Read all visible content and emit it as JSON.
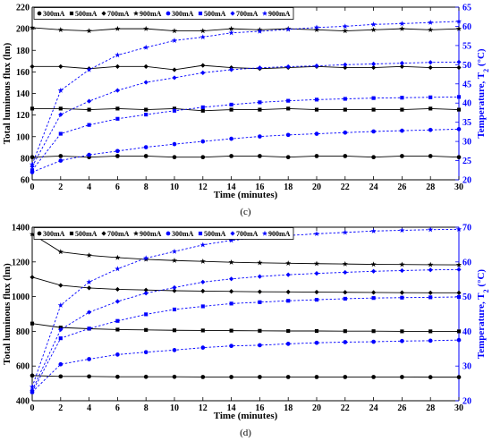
{
  "chart_data": [
    {
      "type": "line",
      "panel_label": "(c)",
      "xlabel": "Time (minutes)",
      "ylabel": "Total luminous flux (lm)",
      "ylabel_right_parts": [
        "Temperature, T",
        "2",
        " (°C)"
      ],
      "xlim": [
        0,
        30
      ],
      "ylim": [
        60,
        220
      ],
      "ylim_right": [
        20,
        65
      ],
      "x_ticks": [
        0,
        2,
        4,
        6,
        8,
        10,
        12,
        14,
        16,
        18,
        20,
        22,
        24,
        26,
        28,
        30
      ],
      "y_ticks": [
        60,
        80,
        100,
        120,
        140,
        160,
        180,
        200,
        220
      ],
      "y_right_ticks": [
        20,
        25,
        30,
        35,
        40,
        45,
        50,
        55,
        60,
        65
      ],
      "x": [
        0,
        2,
        4,
        6,
        8,
        10,
        12,
        14,
        16,
        18,
        20,
        22,
        24,
        26,
        28,
        30
      ],
      "legend_position": "top-left",
      "series": [
        {
          "name": "300mA",
          "axis": "left",
          "color": "#000000",
          "marker": "circle",
          "values": [
            81,
            82,
            81,
            82,
            82,
            81,
            81,
            82,
            82,
            81,
            82,
            82,
            81,
            82,
            82,
            81
          ]
        },
        {
          "name": "500mA",
          "axis": "left",
          "color": "#000000",
          "marker": "square",
          "values": [
            126,
            126,
            125,
            126,
            125,
            126,
            124,
            125,
            125,
            126,
            125,
            125,
            125,
            125,
            126,
            125
          ]
        },
        {
          "name": "700mA",
          "axis": "left",
          "color": "#000000",
          "marker": "diamond",
          "values": [
            165,
            165,
            163,
            165,
            165,
            162,
            166,
            164,
            163,
            164,
            165,
            164,
            164,
            165,
            164,
            164
          ]
        },
        {
          "name": "900mA",
          "axis": "left",
          "color": "#000000",
          "marker": "star",
          "values": [
            201,
            199,
            198,
            200,
            200,
            198,
            198,
            200,
            199,
            200,
            199,
            198,
            199,
            200,
            199,
            200
          ]
        },
        {
          "name": "300mA",
          "axis": "right",
          "color": "#0000ff",
          "marker": "circle",
          "values": [
            22,
            25,
            26.5,
            27.5,
            28.5,
            29.3,
            30,
            30.7,
            31.3,
            31.7,
            32,
            32.3,
            32.6,
            32.8,
            33,
            33.2
          ]
        },
        {
          "name": "500mA",
          "axis": "right",
          "color": "#0000ff",
          "marker": "square",
          "values": [
            22.5,
            32,
            34.3,
            35.9,
            37,
            38,
            38.9,
            39.6,
            40.2,
            40.6,
            40.9,
            41.1,
            41.3,
            41.4,
            41.5,
            41.6
          ]
        },
        {
          "name": "700mA",
          "axis": "right",
          "color": "#0000ff",
          "marker": "diamond",
          "values": [
            23.5,
            37,
            40.5,
            43.3,
            45.4,
            46.6,
            47.9,
            48.7,
            49.2,
            49.5,
            49.7,
            50,
            50.2,
            50.4,
            50.6,
            50.7
          ]
        },
        {
          "name": "900mA",
          "axis": "right",
          "color": "#0000ff",
          "marker": "star",
          "values": [
            24,
            43.3,
            48.7,
            52.5,
            54.5,
            56.3,
            57.2,
            58.3,
            58.7,
            59.2,
            59.7,
            60,
            60.5,
            60.7,
            61,
            61.3
          ]
        }
      ]
    },
    {
      "type": "line",
      "panel_label": "(d)",
      "xlabel": "Time (minutes)",
      "ylabel": "Total luminous flux (lm)",
      "ylabel_right_parts": [
        "Temperature, T",
        "2",
        " (°C)"
      ],
      "xlim": [
        0,
        30
      ],
      "ylim": [
        400,
        1400
      ],
      "ylim_right": [
        20,
        70
      ],
      "x_ticks": [
        0,
        2,
        4,
        6,
        8,
        10,
        12,
        14,
        16,
        18,
        20,
        22,
        24,
        26,
        28,
        30
      ],
      "y_ticks": [
        400,
        600,
        800,
        1000,
        1200,
        1400
      ],
      "y_right_ticks": [
        20,
        30,
        40,
        50,
        60,
        70
      ],
      "x": [
        0,
        2,
        4,
        6,
        8,
        10,
        12,
        14,
        16,
        18,
        20,
        22,
        24,
        26,
        28,
        30
      ],
      "legend_position": "top-left",
      "series": [
        {
          "name": "300mA",
          "axis": "left",
          "color": "#000000",
          "marker": "circle",
          "values": [
            545,
            540,
            540,
            538,
            538,
            538,
            537,
            537,
            537,
            537,
            537,
            537,
            537,
            537,
            536,
            536
          ]
        },
        {
          "name": "500mA",
          "axis": "left",
          "color": "#000000",
          "marker": "square",
          "values": [
            845,
            822,
            815,
            810,
            808,
            806,
            805,
            804,
            803,
            802,
            802,
            801,
            801,
            800,
            800,
            800
          ]
        },
        {
          "name": "700mA",
          "axis": "left",
          "color": "#000000",
          "marker": "diamond",
          "values": [
            1112,
            1065,
            1050,
            1042,
            1038,
            1034,
            1032,
            1030,
            1028,
            1027,
            1026,
            1025,
            1024,
            1023,
            1022,
            1022
          ]
        },
        {
          "name": "900mA",
          "axis": "left",
          "color": "#000000",
          "marker": "star",
          "values": [
            1360,
            1258,
            1238,
            1225,
            1215,
            1208,
            1203,
            1198,
            1195,
            1192,
            1190,
            1188,
            1186,
            1185,
            1184,
            1183
          ]
        },
        {
          "name": "300mA",
          "axis": "right",
          "color": "#0000ff",
          "marker": "circle",
          "values": [
            22.5,
            30.5,
            32,
            33.3,
            34,
            34.6,
            35.3,
            35.8,
            36,
            36.4,
            36.7,
            36.9,
            37,
            37.2,
            37.3,
            37.5
          ]
        },
        {
          "name": "500mA",
          "axis": "right",
          "color": "#0000ff",
          "marker": "square",
          "values": [
            22.5,
            38,
            40.8,
            43,
            44.9,
            46.3,
            47.2,
            48,
            48.4,
            48.8,
            49.1,
            49.4,
            49.6,
            49.7,
            49.8,
            49.9
          ]
        },
        {
          "name": "700mA",
          "axis": "right",
          "color": "#0000ff",
          "marker": "diamond",
          "values": [
            23,
            40.5,
            45.5,
            48.6,
            51,
            52.6,
            54.2,
            55.1,
            55.8,
            56.3,
            56.7,
            57,
            57.3,
            57.5,
            57.7,
            57.8
          ]
        },
        {
          "name": "900mA",
          "axis": "right",
          "color": "#0000ff",
          "marker": "star",
          "values": [
            24,
            47.5,
            54.2,
            58,
            61.1,
            63,
            64.9,
            66.2,
            67,
            67.6,
            68.1,
            68.5,
            68.9,
            69.1,
            69.3,
            69.4
          ]
        }
      ]
    }
  ]
}
